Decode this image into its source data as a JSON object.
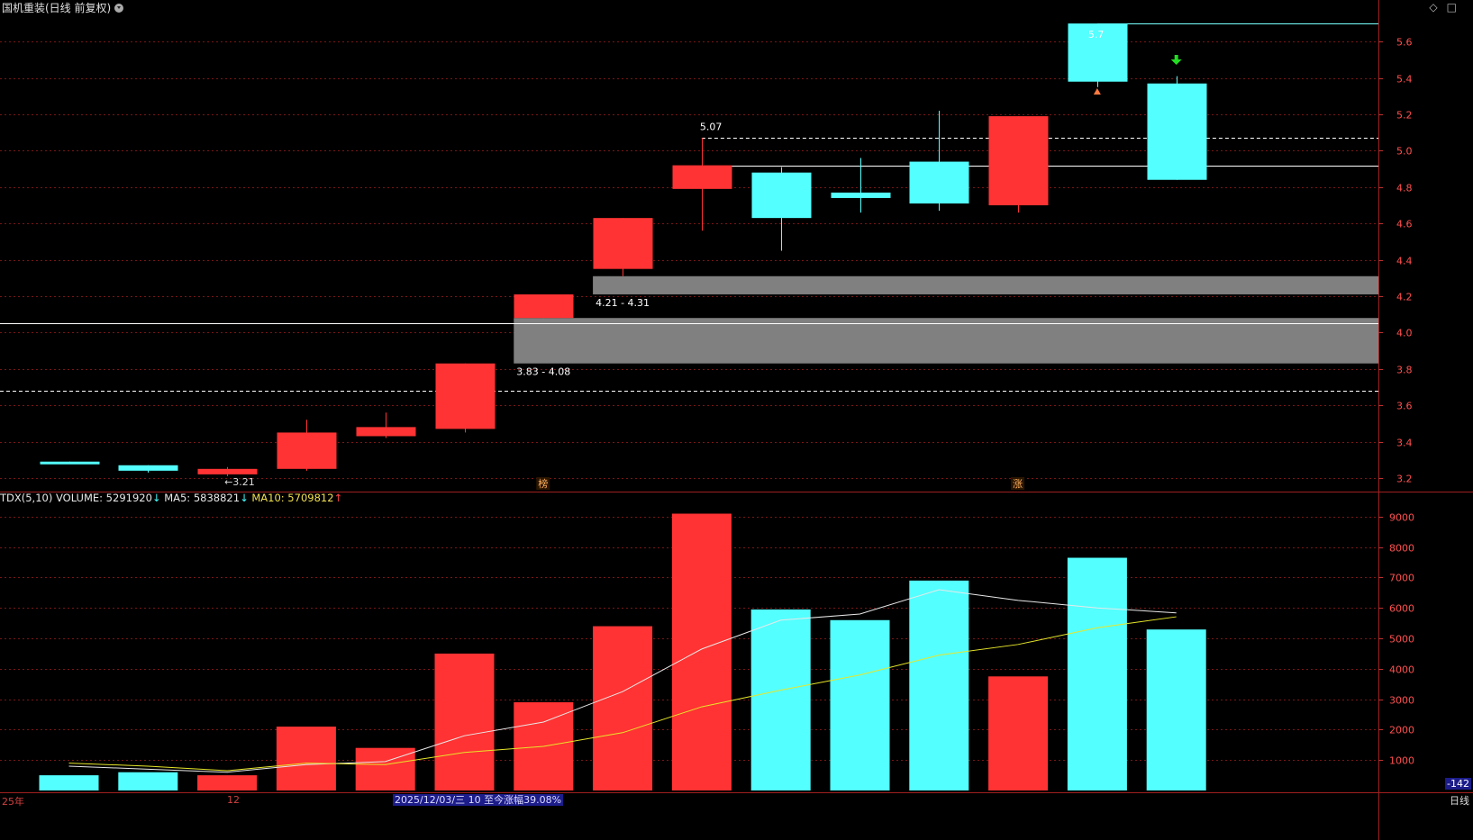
{
  "header": {
    "title": "国机重装(日线 前复权)"
  },
  "toolbar": {
    "diamond_icon": "◇",
    "square_icon": "□"
  },
  "volume_header": {
    "indicator": "TDX(5,10)",
    "volume_label": "VOLUME: 5291920",
    "volume_arrow": "↓",
    "ma5_label": "MA5: 5838821",
    "ma5_arrow": "↓",
    "ma10_label": "MA10: 5709812",
    "ma10_arrow": "↑"
  },
  "footer": {
    "year_label": "25年",
    "month_label": "12",
    "range_tip": "2025/12/03/三 10 至今涨幅39.08%",
    "period_label": "日线",
    "corner_value": "-142"
  },
  "colors": {
    "up": "#ff3333",
    "down": "#54ffff",
    "grid": "#7a1616",
    "axis_text": "#ff5050",
    "ma5": "#e8e8e8",
    "ma10": "#e6e62a",
    "zone": "#808080"
  },
  "chart_data": [
    {
      "type": "candlestick",
      "title": "国机重装(日线 前复权)",
      "ylim": [
        3.15,
        5.75
      ],
      "y_ticks": [
        3.2,
        3.4,
        3.6,
        3.8,
        4.0,
        4.2,
        4.4,
        4.6,
        4.8,
        5.0,
        5.2,
        5.4,
        5.6
      ],
      "y_tick_labels": [
        "3.2",
        "3.4",
        "3.6",
        "3.8",
        "4.0",
        "4.2",
        "4.4",
        "4.6",
        "4.8",
        "5.0",
        "5.2",
        "5.4",
        "5.6"
      ],
      "candles": [
        {
          "open": 3.29,
          "close": 3.28,
          "high": 3.29,
          "low": 3.28
        },
        {
          "open": 3.27,
          "close": 3.24,
          "high": 3.27,
          "low": 3.23
        },
        {
          "open": 3.22,
          "close": 3.25,
          "high": 3.26,
          "low": 3.21
        },
        {
          "open": 3.25,
          "close": 3.45,
          "high": 3.52,
          "low": 3.24
        },
        {
          "open": 3.43,
          "close": 3.48,
          "high": 3.56,
          "low": 3.42
        },
        {
          "open": 3.47,
          "close": 3.83,
          "high": 3.83,
          "low": 3.45
        },
        {
          "open": 4.08,
          "close": 4.21,
          "high": 4.21,
          "low": 4.08
        },
        {
          "open": 4.35,
          "close": 4.63,
          "high": 4.63,
          "low": 4.31
        },
        {
          "open": 4.79,
          "close": 4.92,
          "high": 5.07,
          "low": 4.56
        },
        {
          "open": 4.88,
          "close": 4.63,
          "high": 4.91,
          "low": 4.45
        },
        {
          "open": 4.77,
          "close": 4.74,
          "high": 4.96,
          "low": 4.66
        },
        {
          "open": 4.94,
          "close": 4.71,
          "high": 5.22,
          "low": 4.67
        },
        {
          "open": 4.7,
          "close": 5.19,
          "high": 5.19,
          "low": 4.66
        },
        {
          "open": 5.7,
          "close": 5.38,
          "high": 5.7,
          "low": 5.35
        },
        {
          "open": 5.37,
          "close": 4.84,
          "high": 5.41,
          "low": 4.84
        }
      ],
      "gap_zones": [
        {
          "low": 4.21,
          "high": 4.31,
          "label": "4.21 - 4.31",
          "start_index": 7
        },
        {
          "low": 3.83,
          "high": 4.08,
          "label": "3.83 - 4.08",
          "start_index": 6
        }
      ],
      "reference_lines": [
        {
          "value": 4.05,
          "style": "solid",
          "from_index": -1
        },
        {
          "value": 3.68,
          "style": "dashed",
          "from_index": -1
        },
        {
          "value": 5.07,
          "style": "dashed",
          "from_index": 8
        },
        {
          "value": 4.92,
          "style": "solid",
          "from_index": 8
        },
        {
          "value": 5.7,
          "style": "solid-cyan",
          "from_index": 13
        }
      ],
      "annotations": [
        {
          "text": "←3.21",
          "index": 2,
          "value": 3.21
        },
        {
          "text": "5.07",
          "index": 8,
          "value": 5.07
        },
        {
          "text": "5.7",
          "index": 13,
          "value": 5.7
        }
      ],
      "markers": [
        {
          "text": "榜",
          "index": 6
        },
        {
          "text": "涨",
          "index": 12
        }
      ]
    },
    {
      "type": "bar",
      "title": "TDX(5,10)",
      "ylim": [
        0,
        9500
      ],
      "y_ticks": [
        1000,
        2000,
        3000,
        4000,
        5000,
        6000,
        7000,
        8000,
        9000
      ],
      "y_tick_labels": [
        "1000",
        "2000",
        "3000",
        "4000",
        "5000",
        "6000",
        "7000",
        "8000",
        "9000"
      ],
      "volume": [
        500,
        600,
        500,
        2100,
        1400,
        4500,
        2900,
        5400,
        9100,
        5950,
        5600,
        6900,
        3750,
        7650,
        5292
      ],
      "volume_up": [
        false,
        false,
        true,
        true,
        true,
        true,
        true,
        true,
        true,
        false,
        false,
        false,
        true,
        false,
        false
      ],
      "series": [
        {
          "name": "MA5",
          "values": [
            800,
            700,
            600,
            850,
            950,
            1800,
            2250,
            3250,
            4650,
            5600,
            5800,
            6600,
            6250,
            6000,
            5839
          ]
        },
        {
          "name": "MA10",
          "values": [
            900,
            800,
            650,
            900,
            850,
            1250,
            1450,
            1900,
            2750,
            3300,
            3800,
            4450,
            4800,
            5350,
            5710
          ]
        }
      ]
    }
  ]
}
